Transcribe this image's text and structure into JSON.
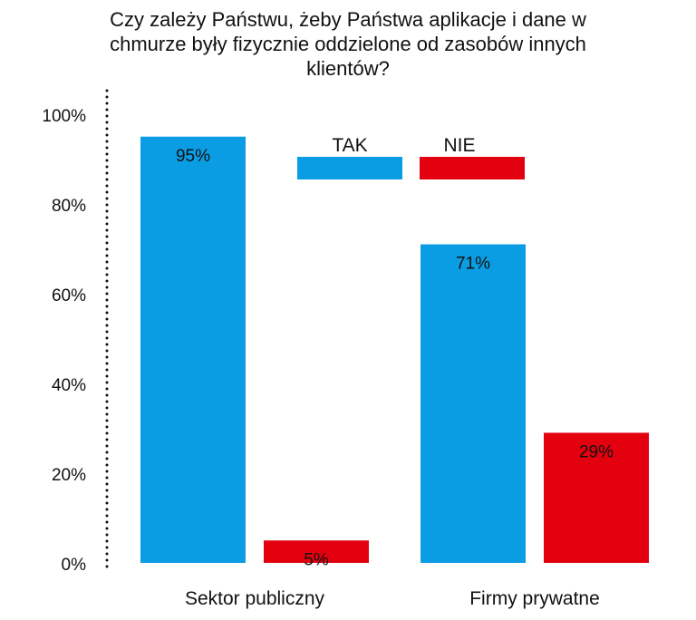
{
  "chart_data": {
    "type": "bar",
    "title": "Czy zależy Państwu, żeby Państwa aplikacje i dane w chmurze były fizycznie oddzielone od zasobów innych klientów?",
    "categories": [
      "Sektor publiczny",
      "Firmy prywatne"
    ],
    "series": [
      {
        "name": "TAK",
        "color": "#0b9de3",
        "values": [
          95,
          71
        ],
        "labels": [
          "95%",
          "71%"
        ]
      },
      {
        "name": "NIE",
        "color": "#e3000f",
        "values": [
          5,
          29
        ],
        "labels": [
          "5%",
          "29%"
        ]
      }
    ],
    "yticks": [
      0,
      20,
      40,
      60,
      80,
      100
    ],
    "ytick_labels": [
      "0%",
      "20%",
      "40%",
      "60%",
      "80%",
      "100%"
    ],
    "ylim": [
      0,
      100
    ],
    "xlabel": "",
    "ylabel": "",
    "legend": {
      "placement": "top-right"
    },
    "grid": false
  }
}
